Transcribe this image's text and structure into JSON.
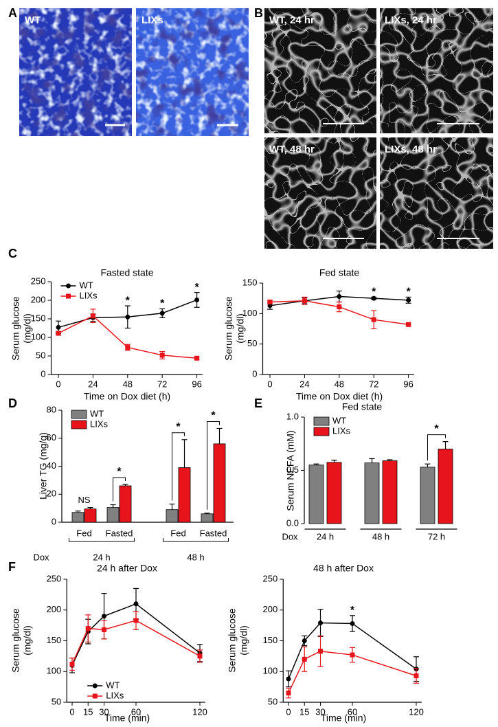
{
  "panel_labels": [
    "A",
    "B",
    "C",
    "D",
    "E",
    "F"
  ],
  "micrographs": {
    "A": [
      "WT",
      "LIXs"
    ],
    "B": [
      "WT, 24 hr",
      "LIXs, 24 hr",
      "WT, 48 hr",
      "LIXs, 48 hr"
    ]
  },
  "chart_data": [
    {
      "type": "line",
      "title": "Fasted state",
      "xlabel": "Time on Dox diet (h)",
      "ylabel": [
        "Serum glucose",
        "(mg/dl)"
      ],
      "x": [
        0,
        24,
        48,
        72,
        96
      ],
      "xlim": [
        -5,
        100
      ],
      "xticks": [
        0,
        24,
        48,
        72,
        96
      ],
      "ylim": [
        0,
        250
      ],
      "yticks": [
        0,
        50,
        100,
        150,
        200,
        250
      ],
      "legend": "upper left",
      "significance": [
        null,
        null,
        "*",
        "*",
        "*"
      ],
      "series": [
        {
          "name": "WT",
          "color": "#000000",
          "marker": "circle",
          "values": [
            127,
            153,
            155,
            165,
            201
          ],
          "errors": [
            17,
            10,
            30,
            12,
            20
          ]
        },
        {
          "name": "LIXs",
          "color": "#e8141b",
          "marker": "square",
          "values": [
            111,
            158,
            73,
            52,
            44
          ],
          "errors": [
            5,
            18,
            8,
            10,
            3
          ]
        }
      ]
    },
    {
      "type": "line",
      "title": "Fed state",
      "xlabel": "Time on Dox diet (h)",
      "ylabel": [
        "Serum glucose",
        "(mg/dl)"
      ],
      "x": [
        0,
        24,
        48,
        72,
        96
      ],
      "xlim": [
        -5,
        100
      ],
      "xticks": [
        0,
        24,
        48,
        72,
        96
      ],
      "ylim": [
        0,
        150
      ],
      "yticks": [
        0,
        50,
        100,
        150
      ],
      "significance": [
        null,
        null,
        null,
        "*",
        "*"
      ],
      "series": [
        {
          "name": "WT",
          "color": "#000000",
          "marker": "circle",
          "values": [
            113,
            121,
            128,
            125,
            122
          ],
          "errors": [
            6,
            5,
            9,
            2,
            5
          ]
        },
        {
          "name": "LIXs",
          "color": "#e8141b",
          "marker": "square",
          "values": [
            119,
            121,
            111,
            90,
            82
          ],
          "errors": [
            3,
            6,
            8,
            15,
            2
          ]
        }
      ]
    },
    {
      "type": "bar",
      "ylabel": [
        "Liver TG (mg/g)"
      ],
      "categories": [
        "Fed",
        "Fasted",
        "Fed",
        "Fasted"
      ],
      "groups": [
        "24 h",
        "48 h"
      ],
      "row_label": "Dox",
      "ylim": [
        0,
        80
      ],
      "yticks": [
        0,
        20,
        40,
        60,
        80
      ],
      "legend": "upper left",
      "significance": [
        "NS",
        "*",
        "*",
        "*"
      ],
      "series": [
        {
          "name": "WT",
          "color": "#808080",
          "values": [
            7,
            10.5,
            9,
            6
          ],
          "errors": [
            1,
            2,
            4,
            0.5
          ]
        },
        {
          "name": "LIXs",
          "color": "#e8141b",
          "values": [
            9.5,
            26,
            39,
            56
          ],
          "errors": [
            1,
            1,
            20,
            11
          ]
        }
      ]
    },
    {
      "type": "bar",
      "title": "Fed state",
      "ylabel": [
        "Serum NEFA (mM)"
      ],
      "categories": [
        "24 h",
        "48 h",
        "72 h"
      ],
      "row_label": "Dox",
      "ylim": [
        0,
        1
      ],
      "yticks": [
        {
          "value": 0,
          "label": "0.0"
        },
        {
          "value": 0.5,
          "label": "0.5"
        },
        {
          "value": 1,
          "label": "1.0"
        }
      ],
      "legend": "upper left",
      "significance": [
        null,
        null,
        "*"
      ],
      "series": [
        {
          "name": "WT",
          "color": "#808080",
          "values": [
            0.55,
            0.57,
            0.53
          ],
          "errors": [
            0.01,
            0.04,
            0.03
          ]
        },
        {
          "name": "LIXs",
          "color": "#e8141b",
          "values": [
            0.575,
            0.59,
            0.7
          ],
          "errors": [
            0.02,
            0.01,
            0.07
          ]
        }
      ]
    },
    {
      "type": "line",
      "title": "24 h after Dox",
      "xlabel": "Time (min)",
      "ylabel": [
        "Serum glucose",
        "(mg/dl)"
      ],
      "x": [
        0,
        15,
        30,
        60,
        120
      ],
      "xlim": [
        -5,
        125
      ],
      "xticks": [
        0,
        15,
        30,
        60,
        120
      ],
      "ylim": [
        50,
        250
      ],
      "yticks": [
        50,
        100,
        150,
        200,
        250
      ],
      "legend": "lower left",
      "series": [
        {
          "name": "WT",
          "color": "#000000",
          "marker": "circle",
          "values": [
            110,
            165,
            190,
            210,
            130
          ],
          "errors": [
            12,
            20,
            37,
            25,
            14
          ]
        },
        {
          "name": "LIXs",
          "color": "#e8141b",
          "marker": "square",
          "values": [
            112,
            170,
            168,
            183,
            125
          ],
          "errors": [
            10,
            22,
            15,
            15,
            10
          ]
        }
      ]
    },
    {
      "type": "line",
      "title": "48 h after Dox",
      "xlabel": "Time (min)",
      "ylabel": [
        "Serum glucose",
        "(mg/dl)"
      ],
      "x": [
        0,
        15,
        30,
        60,
        120
      ],
      "xlim": [
        -5,
        125
      ],
      "xticks": [
        0,
        15,
        30,
        60,
        120
      ],
      "ylim": [
        50,
        250
      ],
      "yticks": [
        50,
        100,
        150,
        200,
        250
      ],
      "significance": [
        null,
        null,
        null,
        "*",
        null
      ],
      "series": [
        {
          "name": "WT",
          "color": "#000000",
          "marker": "circle",
          "values": [
            88,
            150,
            179,
            178,
            104
          ],
          "errors": [
            13,
            8,
            22,
            13,
            20
          ]
        },
        {
          "name": "LIXs",
          "color": "#e8141b",
          "marker": "square",
          "values": [
            65,
            120,
            133,
            127,
            93
          ],
          "errors": [
            8,
            20,
            25,
            12,
            12
          ]
        }
      ]
    }
  ]
}
